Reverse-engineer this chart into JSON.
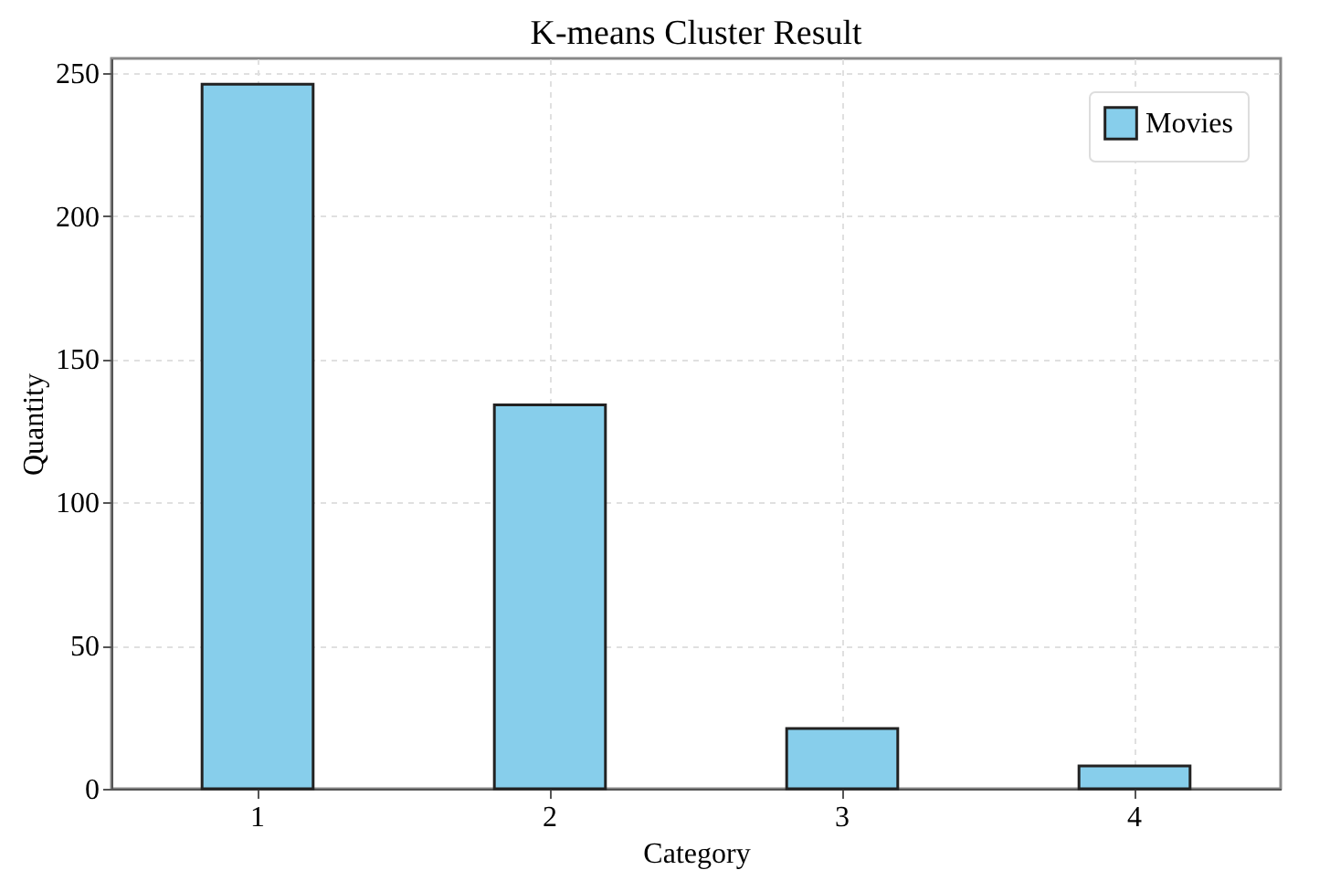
{
  "chart_data": {
    "type": "bar",
    "title": "K-means Cluster Result",
    "xlabel": "Category",
    "ylabel": "Quantity",
    "categories": [
      "1",
      "2",
      "3",
      "4"
    ],
    "series": [
      {
        "name": "Movies",
        "color": "#87ceeb",
        "values": [
          246,
          134,
          21,
          8
        ]
      }
    ],
    "ylim": [
      0,
      255
    ],
    "yticks": [
      0,
      50,
      100,
      150,
      200,
      250
    ],
    "grid": true,
    "legend": "top right"
  }
}
